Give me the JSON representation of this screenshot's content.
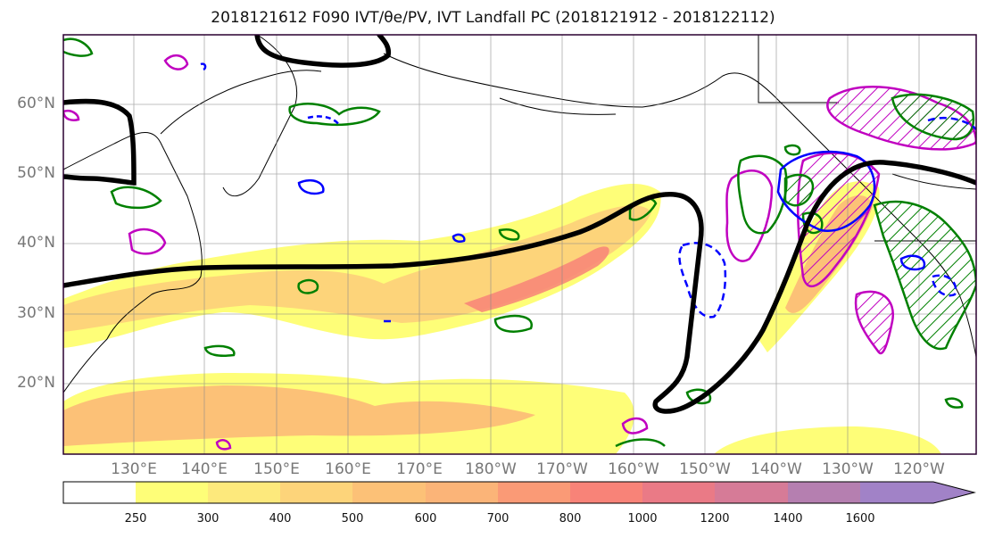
{
  "title": "2018121612 F090 IVT/θe/PV, IVT Landfall PC (2018121912 - 2018122112)",
  "map": {
    "lat_labels": [
      "60°N",
      "50°N",
      "40°N",
      "30°N",
      "20°N"
    ],
    "lon_labels": [
      "130°E",
      "140°E",
      "150°E",
      "160°E",
      "170°E",
      "180°W",
      "170°W",
      "160°W",
      "150°W",
      "140°W",
      "130°W",
      "120°W"
    ],
    "extent": {
      "lon_min": 120,
      "lon_max": 248,
      "lat_min": 10,
      "lat_max": 70
    }
  },
  "colorbar": {
    "ticks": [
      "250",
      "300",
      "400",
      "500",
      "600",
      "700",
      "800",
      "1000",
      "1200",
      "1400",
      "1600"
    ],
    "colors": [
      "#ffffff",
      "#fefe78",
      "#fde97c",
      "#fdd47a",
      "#fcc177",
      "#fbb478",
      "#fa9a76",
      "#f88378",
      "#ea7a86",
      "#d67b97",
      "#b57fb0",
      "#a182c7"
    ],
    "extend": "max"
  },
  "contour_colors": {
    "theta_e": "#000000",
    "pv_positive": "#008000",
    "pv_negative": "#0000ff",
    "landfall_pc": "#c000c0"
  }
}
